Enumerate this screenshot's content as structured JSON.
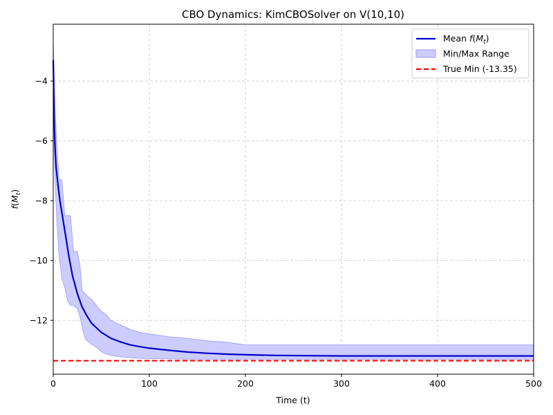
{
  "chart_data": {
    "type": "line",
    "title": "CBO Dynamics: KimCBOSolver on V(10,10)",
    "xlabel": "Time (t)",
    "ylabel": "f(M_t)",
    "xlim": [
      0,
      500
    ],
    "ylim": [
      -13.8,
      -2.1
    ],
    "xticks": [
      0,
      100,
      200,
      300,
      400,
      500
    ],
    "yticks": [
      -12,
      -10,
      -8,
      -6,
      -4
    ],
    "grid": true,
    "grid_style": "dashed",
    "legend_position": "top-right",
    "legend": {
      "mean_prefix": "Mean ",
      "mean_math": "f",
      "mean_paren_open": "(",
      "mean_var": "M",
      "mean_sub": "t",
      "mean_paren_close": ")",
      "range": "Min/Max Range",
      "true_min": "True Min (-13.35)"
    },
    "colors": {
      "mean": "#0000cc",
      "range_fill": "#ccccff",
      "range_edge": "#9999ff",
      "true_min": "#ff0000"
    },
    "series": [
      {
        "name": "Mean f(M_t)",
        "x": [
          0,
          1,
          2,
          3,
          5,
          7,
          10,
          13,
          16,
          20,
          25,
          30,
          35,
          40,
          45,
          50,
          60,
          70,
          80,
          90,
          100,
          120,
          140,
          160,
          180,
          200,
          230,
          260,
          300,
          350,
          400,
          450,
          500
        ],
        "y": [
          -3.3,
          -5.3,
          -6.3,
          -6.9,
          -7.5,
          -8.0,
          -8.6,
          -9.2,
          -9.8,
          -10.5,
          -11.1,
          -11.55,
          -11.85,
          -12.1,
          -12.25,
          -12.4,
          -12.6,
          -12.72,
          -12.82,
          -12.88,
          -12.93,
          -13.0,
          -13.06,
          -13.1,
          -13.13,
          -13.15,
          -13.17,
          -13.18,
          -13.19,
          -13.19,
          -13.19,
          -13.19,
          -13.19
        ]
      },
      {
        "name": "Min/Max Range",
        "x": [
          0,
          2,
          4,
          6,
          9,
          12,
          15,
          18,
          21,
          25,
          28,
          30,
          33,
          36,
          40,
          45,
          50,
          55,
          60,
          70,
          80,
          90,
          100,
          120,
          140,
          160,
          180,
          200,
          205,
          300,
          400,
          500
        ],
        "upper": [
          -2.6,
          -5.0,
          -6.3,
          -7.3,
          -7.3,
          -8.5,
          -8.5,
          -8.5,
          -9.7,
          -9.7,
          -10.2,
          -11.0,
          -11.1,
          -11.2,
          -11.3,
          -11.5,
          -11.7,
          -11.8,
          -12.0,
          -12.15,
          -12.3,
          -12.4,
          -12.45,
          -12.55,
          -12.6,
          -12.68,
          -12.73,
          -12.82,
          -12.82,
          -12.82,
          -12.82,
          -12.82
        ],
        "lower": [
          -5.0,
          -7.5,
          -8.8,
          -9.8,
          -10.6,
          -10.9,
          -11.35,
          -11.5,
          -11.5,
          -11.6,
          -11.9,
          -12.2,
          -12.6,
          -12.7,
          -12.8,
          -12.9,
          -13.05,
          -13.12,
          -13.17,
          -13.22,
          -13.25,
          -13.27,
          -13.28,
          -13.29,
          -13.3,
          -13.3,
          -13.3,
          -13.3,
          -13.3,
          -13.3,
          -13.3,
          -13.3
        ]
      },
      {
        "name": "True Min (-13.35)",
        "value": -13.35
      }
    ]
  }
}
